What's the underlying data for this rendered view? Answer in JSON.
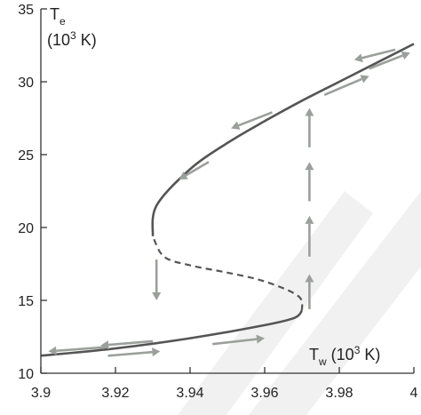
{
  "chart_data": {
    "type": "line",
    "title": "",
    "xlim": [
      3.9,
      4.0
    ],
    "ylim": [
      10,
      35
    ],
    "x_ticks": [
      "3.9",
      "3.92",
      "3.94",
      "3.96",
      "3.98",
      "4"
    ],
    "y_ticks": [
      "10",
      "15",
      "20",
      "25",
      "30",
      "35"
    ],
    "ylabel": {
      "symbol": "T",
      "subscript": "e",
      "unit": "(10",
      "unit_sup": "3",
      "unit_end": " K)"
    },
    "xlabel": {
      "symbol": "T",
      "subscript": "w",
      "unit": " (10",
      "unit_sup": "3",
      "unit_end": " K)"
    },
    "grid": false,
    "series": [
      {
        "style": "solid",
        "x": [
          3.9,
          3.92,
          3.94,
          3.96,
          3.968,
          3.97
        ],
        "y": [
          11.2,
          11.7,
          12.4,
          13.3,
          13.8,
          14.3
        ]
      },
      {
        "style": "dashed",
        "x": [
          3.97,
          3.969,
          3.96,
          3.95,
          3.94,
          3.933,
          3.93
        ],
        "y": [
          14.3,
          15.3,
          16.3,
          16.9,
          17.4,
          18.0,
          19.4
        ]
      },
      {
        "style": "solid",
        "x": [
          3.93,
          3.931,
          3.94,
          3.95,
          3.96,
          3.97,
          3.98,
          3.99,
          4.0
        ],
        "y": [
          19.4,
          21.5,
          24.0,
          25.8,
          27.3,
          28.7,
          30.0,
          31.3,
          32.6
        ]
      }
    ],
    "arrows": [
      {
        "x1": 3.918,
        "y1": 11.8,
        "x2": 3.902,
        "y2": 11.5
      },
      {
        "x1": 3.93,
        "y1": 12.2,
        "x2": 3.916,
        "y2": 11.9
      },
      {
        "x1": 3.918,
        "y1": 11.2,
        "x2": 3.932,
        "y2": 11.5
      },
      {
        "x1": 3.946,
        "y1": 12.0,
        "x2": 3.96,
        "y2": 12.4
      },
      {
        "x1": 3.931,
        "y1": 17.8,
        "x2": 3.931,
        "y2": 15.0
      },
      {
        "x1": 3.972,
        "y1": 14.4,
        "x2": 3.972,
        "y2": 16.8
      },
      {
        "x1": 3.972,
        "y1": 18.0,
        "x2": 3.972,
        "y2": 20.8
      },
      {
        "x1": 3.972,
        "y1": 21.8,
        "x2": 3.972,
        "y2": 24.5
      },
      {
        "x1": 3.972,
        "y1": 25.5,
        "x2": 3.972,
        "y2": 28.2
      },
      {
        "x1": 3.945,
        "y1": 24.5,
        "x2": 3.937,
        "y2": 23.3
      },
      {
        "x1": 3.962,
        "y1": 27.9,
        "x2": 3.951,
        "y2": 26.8
      },
      {
        "x1": 3.995,
        "y1": 32.2,
        "x2": 3.984,
        "y2": 31.5
      },
      {
        "x1": 3.976,
        "y1": 29.1,
        "x2": 3.988,
        "y2": 30.4
      },
      {
        "x1": 3.988,
        "y1": 30.9,
        "x2": 3.999,
        "y2": 32.0
      }
    ]
  }
}
